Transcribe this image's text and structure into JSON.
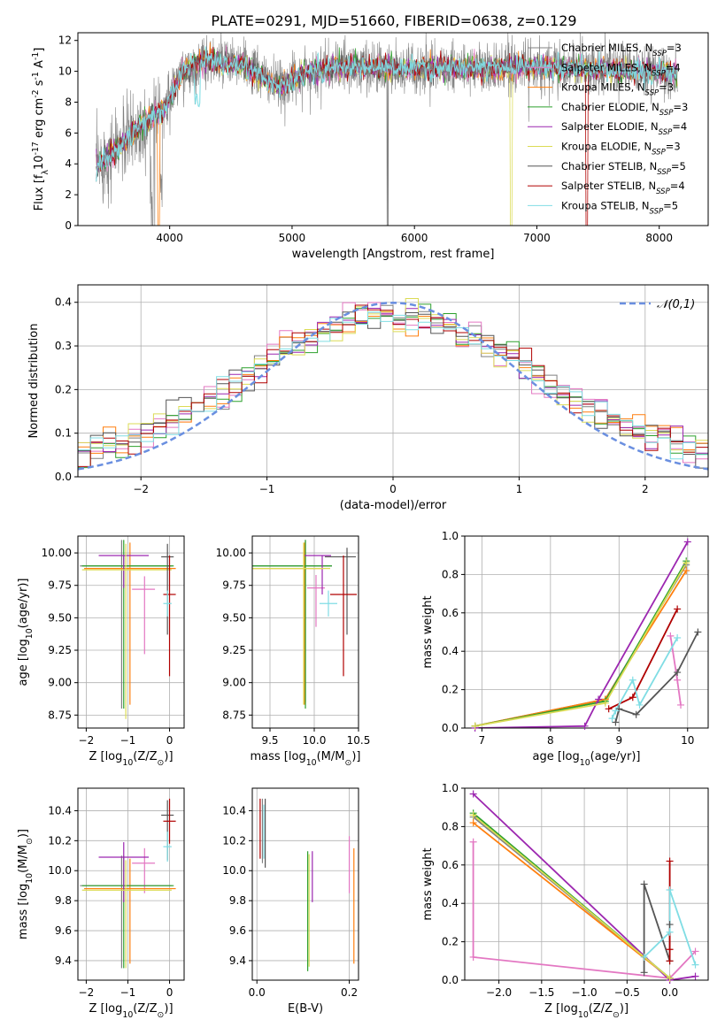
{
  "figure": {
    "title": "PLATE=0291, MJD=51660, FIBERID=0638, z=0.129"
  },
  "models": [
    {
      "name": "Chabrier MILES",
      "nssp": "3",
      "color": "#808080"
    },
    {
      "name": "Salpeter MILES",
      "nssp": "4",
      "color": "#e377c2"
    },
    {
      "name": "Kroupa MILES",
      "nssp": "3",
      "color": "#ff7f0e"
    },
    {
      "name": "Chabrier ELODIE",
      "nssp": "3",
      "color": "#2ca02c"
    },
    {
      "name": "Salpeter ELODIE",
      "nssp": "4",
      "color": "#9c27b0"
    },
    {
      "name": "Kroupa ELODIE",
      "nssp": "3",
      "color": "#dbdb55"
    },
    {
      "name": "Chabrier STELIB",
      "nssp": "5",
      "color": "#555555"
    },
    {
      "name": "Salpeter STELIB",
      "nssp": "4",
      "color": "#b00000"
    },
    {
      "name": "Kroupa STELIB",
      "nssp": "5",
      "color": "#80dde4"
    }
  ],
  "chart_data": [
    {
      "id": "spectrum",
      "type": "line",
      "xlabel": "wavelength [Angstrom, rest frame]",
      "ylabel": "Flux [f$_{\\lambda}$10$^{-17}$ erg cm$^{-2}$ s$^{-1}$ A$^{-1}$]",
      "xlim": [
        3250,
        8400
      ],
      "ylim": [
        0,
        12.5
      ],
      "xticks": [
        4000,
        5000,
        6000,
        7000,
        8000
      ],
      "yticks": [
        0,
        2,
        4,
        6,
        8,
        10,
        12
      ],
      "x_start": 3400,
      "x_end": 8150,
      "continuum": [
        [
          3400,
          3.9
        ],
        [
          3600,
          5.2
        ],
        [
          3800,
          6.8
        ],
        [
          3950,
          7.5
        ],
        [
          4100,
          9.9
        ],
        [
          4300,
          10.7
        ],
        [
          4600,
          10.4
        ],
        [
          4900,
          8.9
        ],
        [
          5100,
          9.9
        ],
        [
          5400,
          10.3
        ],
        [
          6000,
          10.2
        ],
        [
          6600,
          10.2
        ],
        [
          7000,
          10.3
        ],
        [
          7600,
          10.1
        ],
        [
          8150,
          9.9
        ]
      ],
      "grid": false
    },
    {
      "id": "residuals",
      "type": "histogram",
      "xlabel": "(data-model)/error",
      "ylabel": "Normed distribution",
      "xlim": [
        -2.5,
        2.5
      ],
      "ylim": [
        0,
        0.44
      ],
      "xticks": [
        -2,
        -1,
        0,
        1,
        2
      ],
      "yticks": [
        0.0,
        0.1,
        0.2,
        0.3,
        0.4
      ],
      "bin_width": 0.1,
      "curve_label": "$\\mathcal{N}(0,1)$",
      "curve_color": "#6a8fe0",
      "grid": true
    },
    {
      "id": "age-z",
      "type": "errorbar",
      "xlabel": "Z [log$_{10}$(Z/Z$_\\odot$)]",
      "ylabel": "age  [log$_{10}$(age/yr)]",
      "xlim": [
        -2.2,
        0.35
      ],
      "ylim": [
        8.65,
        10.13
      ],
      "xticks": [
        -2,
        -1,
        0
      ],
      "yticks": [
        8.75,
        9.0,
        9.25,
        9.5,
        9.75,
        10.0
      ],
      "points": [
        {
          "model": 0,
          "x": -1.15,
          "xerr": [
            1.0,
            1.2
          ],
          "y": 9.9,
          "yerr": [
            1.1,
            0.2
          ]
        },
        {
          "model": 1,
          "x": -0.6,
          "xerr": [
            0.3,
            0.25
          ],
          "y": 9.72,
          "yerr": [
            0.5,
            0.1
          ]
        },
        {
          "model": 2,
          "x": -0.95,
          "xerr": [
            1.1,
            1.1
          ],
          "y": 9.88,
          "yerr": [
            1.05,
            0.2
          ]
        },
        {
          "model": 3,
          "x": -1.1,
          "xerr": [
            1.0,
            1.2
          ],
          "y": 9.9,
          "yerr": [
            1.1,
            0.2
          ]
        },
        {
          "model": 4,
          "x": -1.1,
          "xerr": [
            0.6,
            0.6
          ],
          "y": 9.98,
          "yerr": [
            0.25,
            0.0
          ]
        },
        {
          "model": 5,
          "x": -1.05,
          "xerr": [
            1.05,
            1.1
          ],
          "y": 9.87,
          "yerr": [
            1.15,
            0.2
          ]
        },
        {
          "model": 6,
          "x": -0.05,
          "xerr": [
            0.15,
            0.15
          ],
          "y": 9.97,
          "yerr": [
            0.6,
            0.1
          ]
        },
        {
          "model": 7,
          "x": 0.0,
          "xerr": [
            0.15,
            0.15
          ],
          "y": 9.68,
          "yerr": [
            0.63,
            0.3
          ]
        },
        {
          "model": 8,
          "x": -0.05,
          "xerr": [
            0.1,
            0.1
          ],
          "y": 9.61,
          "yerr": [
            0.1,
            0.1
          ]
        }
      ]
    },
    {
      "id": "age-mass",
      "type": "errorbar",
      "xlabel": "mass [log$_{10}$(M/M$_\\odot$)]",
      "ylabel": "",
      "xlim": [
        9.3,
        10.5
      ],
      "ylim": [
        8.65,
        10.13
      ],
      "xticks": [
        9.5,
        10.0,
        10.5
      ],
      "yticks": [
        8.75,
        9.0,
        9.25,
        9.5,
        9.75,
        10.0
      ],
      "points": [
        {
          "model": 0,
          "x": 9.9,
          "xerr": [
            0.6,
            0.3
          ],
          "y": 9.9,
          "yerr": [
            1.05,
            0.2
          ]
        },
        {
          "model": 1,
          "x": 10.02,
          "xerr": [
            0.1,
            0.1
          ],
          "y": 9.73,
          "yerr": [
            0.3,
            0.1
          ]
        },
        {
          "model": 2,
          "x": 9.89,
          "xerr": [
            0.6,
            0.2
          ],
          "y": 9.88,
          "yerr": [
            1.05,
            0.2
          ]
        },
        {
          "model": 3,
          "x": 9.9,
          "xerr": [
            0.6,
            0.3
          ],
          "y": 9.9,
          "yerr": [
            1.1,
            0.2
          ]
        },
        {
          "model": 4,
          "x": 10.09,
          "xerr": [
            0.2,
            0.1
          ],
          "y": 9.98,
          "yerr": [
            0.3,
            0.0
          ]
        },
        {
          "model": 5,
          "x": 9.88,
          "xerr": [
            0.6,
            0.3
          ],
          "y": 9.88,
          "yerr": [
            1.05,
            0.2
          ]
        },
        {
          "model": 6,
          "x": 10.37,
          "xerr": [
            0.25,
            0.1
          ],
          "y": 9.97,
          "yerr": [
            0.6,
            0.07
          ]
        },
        {
          "model": 7,
          "x": 10.33,
          "xerr": [
            0.15,
            0.15
          ],
          "y": 9.68,
          "yerr": [
            0.63,
            0.3
          ]
        },
        {
          "model": 8,
          "x": 10.16,
          "xerr": [
            0.1,
            0.1
          ],
          "y": 9.61,
          "yerr": [
            0.1,
            0.1
          ]
        }
      ]
    },
    {
      "id": "mass-weight-age",
      "type": "line",
      "xlabel": "age  [log$_{10}$(age/yr)]",
      "ylabel": "mass weight",
      "xlim": [
        6.75,
        10.3
      ],
      "ylim": [
        0,
        1.0
      ],
      "xticks": [
        7,
        8,
        9,
        10
      ],
      "yticks": [
        0.0,
        0.2,
        0.4,
        0.6,
        0.8,
        1.0
      ],
      "series": [
        {
          "model": 0,
          "x": [
            6.9,
            8.8,
            9.98
          ],
          "y": [
            0.01,
            0.15,
            0.85
          ]
        },
        {
          "model": 1,
          "x": [
            9.75,
            9.85,
            9.9
          ],
          "y": [
            0.48,
            0.25,
            0.12
          ]
        },
        {
          "model": 2,
          "x": [
            6.9,
            8.8,
            9.98
          ],
          "y": [
            0.01,
            0.15,
            0.82
          ]
        },
        {
          "model": 3,
          "x": [
            6.9,
            8.8,
            9.98
          ],
          "y": [
            0.01,
            0.14,
            0.87
          ]
        },
        {
          "model": 4,
          "x": [
            6.9,
            8.5,
            8.7,
            10.0
          ],
          "y": [
            0.0,
            0.01,
            0.15,
            0.97
          ]
        },
        {
          "model": 5,
          "x": [
            6.9,
            8.8,
            9.98
          ],
          "y": [
            0.01,
            0.13,
            0.86
          ]
        },
        {
          "model": 6,
          "x": [
            8.95,
            9.0,
            9.25,
            9.85,
            10.15
          ],
          "y": [
            0.03,
            0.1,
            0.07,
            0.29,
            0.5
          ]
        },
        {
          "model": 7,
          "x": [
            8.85,
            9.2,
            9.85
          ],
          "y": [
            0.1,
            0.16,
            0.62
          ]
        },
        {
          "model": 8,
          "x": [
            8.9,
            8.95,
            9.2,
            9.3,
            9.85
          ],
          "y": [
            0.05,
            0.09,
            0.25,
            0.12,
            0.47
          ]
        }
      ]
    },
    {
      "id": "mass-z",
      "type": "errorbar",
      "xlabel": "Z [log$_{10}$(Z/Z$_\\odot$)]",
      "ylabel": "mass [log$_{10}$(M/M$_\\odot$)]",
      "xlim": [
        -2.2,
        0.35
      ],
      "ylim": [
        9.27,
        10.55
      ],
      "xticks": [
        -2,
        -1,
        0
      ],
      "yticks": [
        9.4,
        9.6,
        9.8,
        10.0,
        10.2,
        10.4
      ],
      "points": [
        {
          "model": 0,
          "x": -1.15,
          "xerr": [
            1.0,
            1.2
          ],
          "y": 9.9,
          "yerr": [
            0.55,
            0.2
          ]
        },
        {
          "model": 1,
          "x": -0.6,
          "xerr": [
            0.3,
            0.25
          ],
          "y": 10.05,
          "yerr": [
            0.2,
            0.1
          ]
        },
        {
          "model": 2,
          "x": -0.95,
          "xerr": [
            1.1,
            1.1
          ],
          "y": 9.88,
          "yerr": [
            0.5,
            0.2
          ]
        },
        {
          "model": 3,
          "x": -1.1,
          "xerr": [
            1.0,
            1.2
          ],
          "y": 9.9,
          "yerr": [
            0.55,
            0.2
          ]
        },
        {
          "model": 4,
          "x": -1.1,
          "xerr": [
            0.6,
            0.6
          ],
          "y": 10.09,
          "yerr": [
            0.3,
            0.1
          ]
        },
        {
          "model": 5,
          "x": -1.05,
          "xerr": [
            1.05,
            1.1
          ],
          "y": 9.87,
          "yerr": [
            0.52,
            0.2
          ]
        },
        {
          "model": 6,
          "x": -0.05,
          "xerr": [
            0.15,
            0.15
          ],
          "y": 10.37,
          "yerr": [
            0.3,
            0.1
          ]
        },
        {
          "model": 7,
          "x": 0.0,
          "xerr": [
            0.15,
            0.15
          ],
          "y": 10.33,
          "yerr": [
            0.15,
            0.15
          ]
        },
        {
          "model": 8,
          "x": -0.05,
          "xerr": [
            0.1,
            0.1
          ],
          "y": 10.16,
          "yerr": [
            0.1,
            0.1
          ]
        }
      ]
    },
    {
      "id": "mass-ebv",
      "type": "errorbar",
      "xlabel": "E(B-V)",
      "ylabel": "",
      "xlim": [
        -0.01,
        0.22
      ],
      "ylim": [
        9.27,
        10.55
      ],
      "xticks": [
        0.0,
        0.2
      ],
      "yticks": [
        9.4,
        9.6,
        9.8,
        10.0,
        10.2,
        10.4
      ],
      "points": [
        {
          "model": 0,
          "x": 0.012,
          "xerr": [
            0,
            0
          ],
          "y": 10.25,
          "yerr": [
            0.2,
            0.23
          ]
        },
        {
          "model": 1,
          "x": 0.2,
          "xerr": [
            0,
            0
          ],
          "y": 10.05,
          "yerr": [
            0.2,
            0.18
          ]
        },
        {
          "model": 2,
          "x": 0.21,
          "xerr": [
            0,
            0
          ],
          "y": 9.85,
          "yerr": [
            0.47,
            0.3
          ]
        },
        {
          "model": 3,
          "x": 0.11,
          "xerr": [
            0,
            0
          ],
          "y": 9.73,
          "yerr": [
            0.4,
            0.4
          ]
        },
        {
          "model": 4,
          "x": 0.12,
          "xerr": [
            0,
            0
          ],
          "y": 9.93,
          "yerr": [
            0.14,
            0.2
          ]
        },
        {
          "model": 5,
          "x": 0.113,
          "xerr": [
            0,
            0
          ],
          "y": 9.73,
          "yerr": [
            0.37,
            0.38
          ]
        },
        {
          "model": 6,
          "x": 0.018,
          "xerr": [
            0,
            0
          ],
          "y": 10.25,
          "yerr": [
            0.23,
            0.23
          ]
        },
        {
          "model": 7,
          "x": 0.007,
          "xerr": [
            0,
            0
          ],
          "y": 10.28,
          "yerr": [
            0.2,
            0.2
          ]
        },
        {
          "model": 8,
          "x": 0.015,
          "xerr": [
            0,
            0
          ],
          "y": 10.26,
          "yerr": [
            0.18,
            0.18
          ]
        }
      ]
    },
    {
      "id": "mass-weight-z",
      "type": "line",
      "xlabel": "Z [log$_{10}$(Z/Z$_\\odot$)]",
      "ylabel": "mass weight",
      "xlim": [
        -2.4,
        0.45
      ],
      "ylim": [
        0,
        1.0
      ],
      "xticks": [
        -2.0,
        -1.5,
        -1.0,
        -0.5,
        0.0
      ],
      "yticks": [
        0.0,
        0.2,
        0.4,
        0.6,
        0.8,
        1.0
      ],
      "series": [
        {
          "model": 0,
          "x": [
            -2.3,
            0.0
          ],
          "y": [
            0.85,
            0.01
          ]
        },
        {
          "model": 1,
          "x": [
            -2.3,
            -2.3,
            0.0,
            0.3
          ],
          "y": [
            0.72,
            0.12,
            0.01,
            0.15
          ]
        },
        {
          "model": 2,
          "x": [
            -2.3,
            0.0
          ],
          "y": [
            0.82,
            0.01
          ]
        },
        {
          "model": 3,
          "x": [
            -2.3,
            0.0
          ],
          "y": [
            0.87,
            0.01
          ]
        },
        {
          "model": 4,
          "x": [
            -2.3,
            0.0,
            0.3
          ],
          "y": [
            0.97,
            0.0,
            0.02
          ]
        },
        {
          "model": 5,
          "x": [
            -2.3,
            0.0
          ],
          "y": [
            0.86,
            0.01
          ]
        },
        {
          "model": 6,
          "x": [
            -0.3,
            -0.3,
            0.0,
            0.0
          ],
          "y": [
            0.04,
            0.5,
            0.1,
            0.29
          ]
        },
        {
          "model": 7,
          "x": [
            0.0,
            0.0,
            0.0
          ],
          "y": [
            0.1,
            0.16,
            0.62
          ]
        },
        {
          "model": 8,
          "x": [
            -0.3,
            0.0,
            0.0,
            0.3
          ],
          "y": [
            0.12,
            0.25,
            0.47,
            0.08
          ]
        }
      ]
    }
  ]
}
